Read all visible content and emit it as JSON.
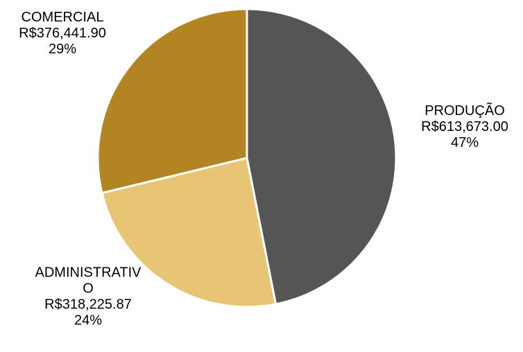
{
  "chart_data": {
    "type": "pie",
    "slices": [
      {
        "category": "PRODUÇÃO",
        "value": 613673.0,
        "value_label": "R$613,673.00",
        "percent_label": "47%",
        "color": "#555555"
      },
      {
        "category": "ADMINISTRATIVO",
        "category_lines": [
          "ADMINISTRATIV",
          "O"
        ],
        "value": 318225.87,
        "value_label": "R$318,225.87",
        "percent_label": "24%",
        "color": "#E8C574"
      },
      {
        "category": "COMERCIAL",
        "value": 376441.9,
        "value_label": "R$376,441.90",
        "percent_label": "29%",
        "color": "#B38522"
      }
    ],
    "legend": "none",
    "separator_color": "#ffffff"
  }
}
